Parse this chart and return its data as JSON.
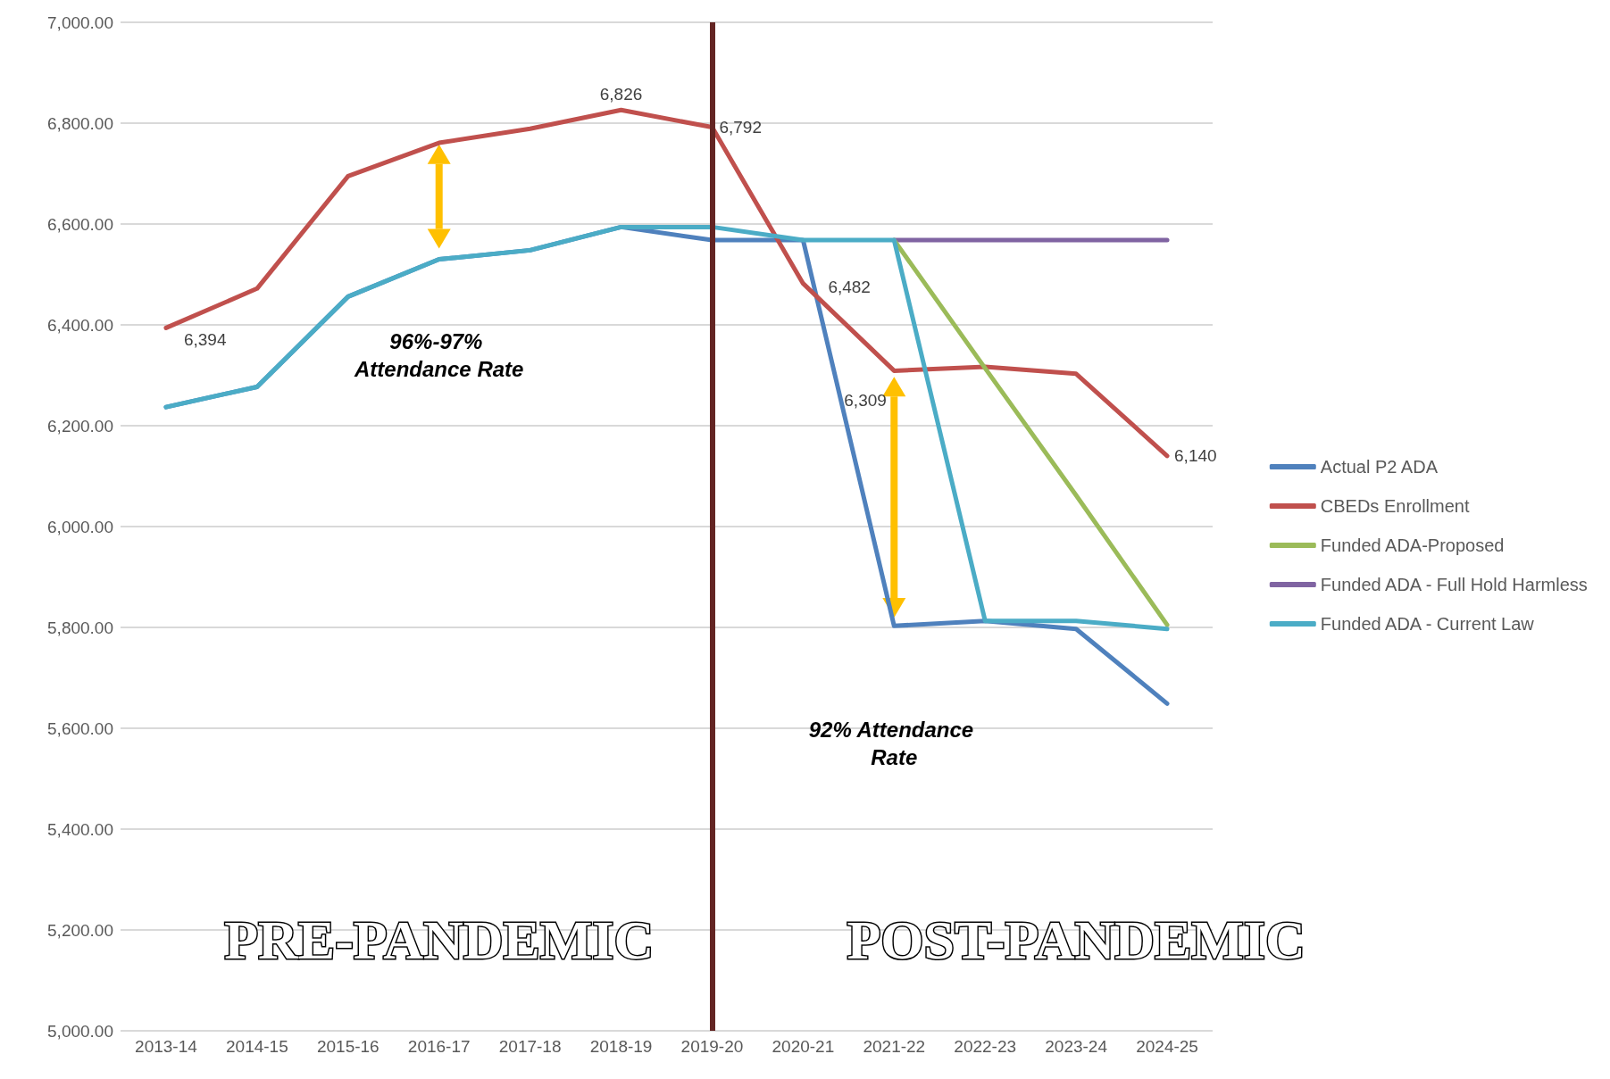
{
  "chart_data": {
    "type": "line",
    "categories": [
      "2013-14",
      "2014-15",
      "2015-16",
      "2016-17",
      "2017-18",
      "2018-19",
      "2019-20",
      "2020-21",
      "2021-22",
      "2022-23",
      "2023-24",
      "2024-25"
    ],
    "series": [
      {
        "name": "Actual P2 ADA",
        "color": "#4f81bd",
        "values": [
          6237,
          6277,
          6456,
          6530,
          6548,
          6594,
          6568,
          6568,
          5803,
          5813,
          5797,
          5649
        ]
      },
      {
        "name": "CBEDs Enrollment",
        "color": "#c0504d",
        "values": [
          6394,
          6472,
          6695,
          6761,
          6789,
          6826,
          6792,
          6482,
          6309,
          6317,
          6303,
          6140
        ],
        "value_labels": [
          "6,394",
          null,
          null,
          null,
          null,
          "6,826",
          "6,792",
          "6,482",
          "6,309",
          null,
          null,
          "6,140"
        ]
      },
      {
        "name": "Funded ADA-Proposed",
        "color": "#9bbb59",
        "values": [
          null,
          null,
          null,
          null,
          null,
          null,
          null,
          null,
          6568,
          6314,
          6062,
          5805
        ]
      },
      {
        "name": "Funded ADA - Full Hold Harmless",
        "color": "#8064a2",
        "values": [
          null,
          null,
          null,
          null,
          null,
          null,
          null,
          null,
          6568,
          6568,
          6568,
          6568
        ]
      },
      {
        "name": "Funded ADA - Current Law",
        "color": "#4bacc6",
        "values": [
          6237,
          6277,
          6456,
          6530,
          6548,
          6594,
          6594,
          6568,
          6568,
          5813,
          5813,
          5797
        ]
      }
    ],
    "ylim": [
      5000,
      7000
    ],
    "yticks": [
      {
        "value": 5000,
        "label": "5,000.00"
      },
      {
        "value": 5200,
        "label": "5,200.00"
      },
      {
        "value": 5400,
        "label": "5,400.00"
      },
      {
        "value": 5600,
        "label": "5,600.00"
      },
      {
        "value": 5800,
        "label": "5,800.00"
      },
      {
        "value": 6000,
        "label": "6,000.00"
      },
      {
        "value": 6200,
        "label": "6,200.00"
      },
      {
        "value": 6400,
        "label": "6,400.00"
      },
      {
        "value": 6600,
        "label": "6,600.00"
      },
      {
        "value": 6800,
        "label": "6,800.00"
      },
      {
        "value": 7000,
        "label": "7,000.00"
      }
    ],
    "ref_lines": [
      {
        "axis": "x",
        "value": "2019-20",
        "color": "#632523"
      }
    ],
    "annotations": [
      "96%-97% Attendance Rate",
      "92% Attendance Rate",
      "PRE-PANDEMIC",
      "POST-PANDEMIC"
    ],
    "grid": "y",
    "legend": "right",
    "marker": "none",
    "line_style": "solid"
  }
}
